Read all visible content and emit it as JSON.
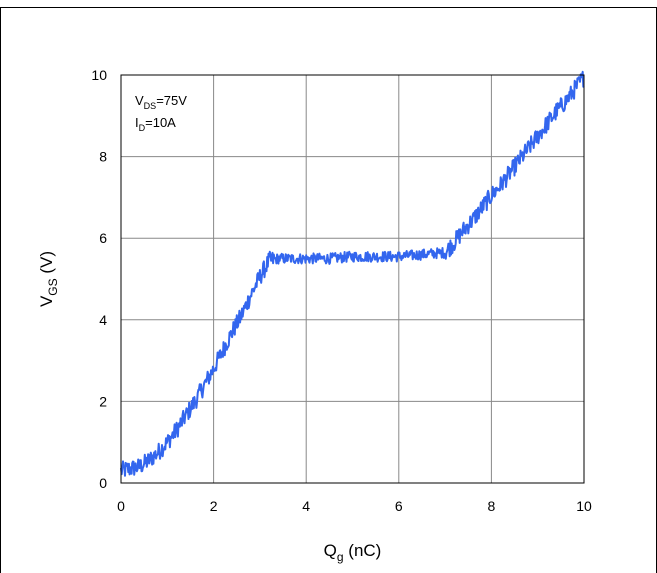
{
  "chart_data": {
    "type": "line",
    "x_label": {
      "main": "Q",
      "sub": "g",
      "rest": " (nC)"
    },
    "y_label": {
      "main": "V",
      "sub": "GS",
      "rest": " (V)"
    },
    "xlim": [
      0,
      10
    ],
    "ylim": [
      0,
      10
    ],
    "x_ticks": [
      "0",
      "2",
      "4",
      "6",
      "8",
      "10"
    ],
    "y_ticks": [
      "0",
      "2",
      "4",
      "6",
      "8",
      "10"
    ],
    "grid": true,
    "annotation": [
      {
        "main": "V",
        "sub": "DS",
        "rest": "=75V"
      },
      {
        "main": "I",
        "sub": "D",
        "rest": "=10A"
      }
    ],
    "series_color": "#3366ee",
    "series": [
      {
        "x": [
          0,
          0.2,
          0.4,
          0.6,
          0.8,
          1.0,
          1.2,
          1.4,
          1.6,
          1.8,
          2.0,
          2.2,
          2.4,
          2.6,
          2.8,
          3.0,
          3.2,
          3.4,
          3.6,
          3.8,
          4.0,
          4.5,
          5.0,
          5.5,
          6.0,
          6.5,
          7.0,
          7.2,
          7.4,
          7.6,
          7.8,
          8.0,
          8.2,
          8.4,
          8.6,
          8.8,
          9.0,
          9.2,
          9.4,
          9.6,
          9.8,
          10.0
        ],
        "y": [
          0.3,
          0.35,
          0.4,
          0.55,
          0.75,
          1.0,
          1.3,
          1.65,
          2.0,
          2.4,
          2.8,
          3.25,
          3.7,
          4.1,
          4.6,
          5.05,
          5.45,
          5.5,
          5.5,
          5.5,
          5.5,
          5.5,
          5.55,
          5.55,
          5.55,
          5.6,
          5.65,
          5.9,
          6.2,
          6.45,
          6.75,
          7.05,
          7.3,
          7.6,
          7.9,
          8.2,
          8.5,
          8.8,
          9.1,
          9.35,
          9.65,
          9.95
        ]
      }
    ]
  }
}
